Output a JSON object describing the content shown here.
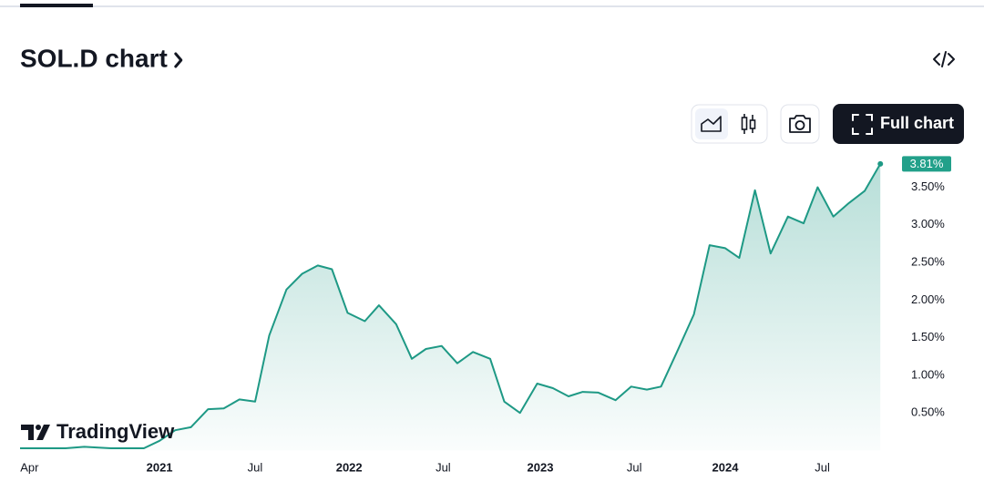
{
  "title": "SOL.D chart",
  "full_chart_button": "Full chart",
  "logo": "TradingView",
  "chart_data": {
    "type": "area",
    "x": [
      -0.6,
      2.3,
      3.5,
      4.4,
      5.2,
      7.3,
      8.3,
      9.3,
      10.3,
      11.4,
      12.4,
      13.4,
      14.4,
      15.3,
      16.4,
      17.4,
      18.4,
      19.3,
      20.3,
      21.4,
      22.3,
      23.4,
      24.4,
      25.3,
      26.3,
      27.3,
      28.3,
      29.4,
      30.3,
      31.3,
      32.4,
      33.4,
      34.4,
      35.3,
      36.3,
      37.4,
      38.4,
      39.4,
      40.3,
      41.3,
      42.4,
      43.4,
      44.4,
      45.3,
      46.3,
      47.3,
      48.4,
      49.4,
      50.3,
      51.3,
      52.3,
      53.3,
      54.3
    ],
    "values": [
      0.03,
      0.03,
      0.05,
      0.04,
      0.03,
      0.03,
      0.13,
      0.27,
      0.31,
      0.55,
      0.56,
      0.68,
      0.65,
      1.53,
      2.14,
      2.35,
      2.46,
      2.41,
      1.83,
      1.72,
      1.93,
      1.68,
      1.22,
      1.35,
      1.39,
      1.16,
      1.31,
      1.22,
      0.65,
      0.5,
      0.89,
      0.83,
      0.72,
      0.78,
      0.77,
      0.67,
      0.85,
      0.81,
      0.85,
      1.3,
      1.81,
      2.73,
      2.69,
      2.56,
      3.46,
      2.62,
      3.11,
      3.02,
      3.5,
      3.11,
      3.29,
      3.45,
      3.81
    ],
    "last_value_label": "3.81%",
    "color": "#1e9985",
    "xlim": [
      -0.6,
      55.1
    ],
    "ylim": [
      0,
      3.93
    ],
    "xticks": [
      {
        "value": 0,
        "label": "Apr"
      },
      {
        "value": 8.3,
        "label": "2021"
      },
      {
        "value": 14.4,
        "label": "Jul"
      },
      {
        "value": 20.4,
        "label": "2022"
      },
      {
        "value": 26.4,
        "label": "Jul"
      },
      {
        "value": 32.6,
        "label": "2023"
      },
      {
        "value": 38.6,
        "label": "Jul"
      },
      {
        "value": 44.4,
        "label": "2024"
      },
      {
        "value": 50.6,
        "label": "Jul"
      }
    ],
    "yticks": [
      {
        "value": 0.5,
        "label": "0.50%"
      },
      {
        "value": 1,
        "label": "1.00%"
      },
      {
        "value": 1.5,
        "label": "1.50%"
      },
      {
        "value": 2,
        "label": "2.00%"
      },
      {
        "value": 2.5,
        "label": "2.50%"
      },
      {
        "value": 3,
        "label": "3.00%"
      },
      {
        "value": 3.5,
        "label": "3.50%"
      }
    ]
  }
}
